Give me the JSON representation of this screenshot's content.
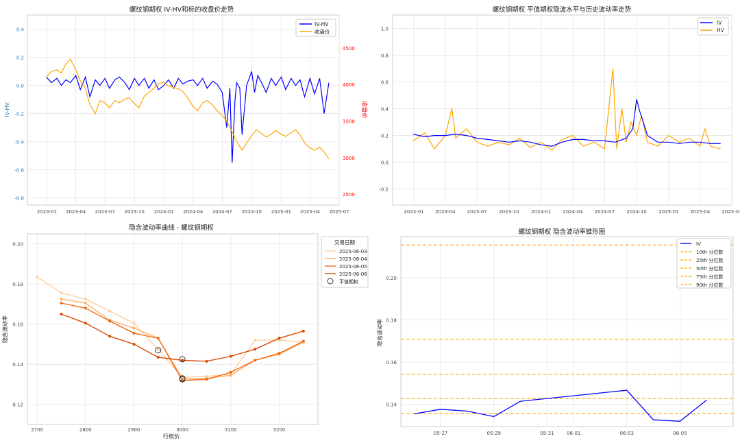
{
  "charts": {
    "tl": {
      "title": "螺纹钢期权 IV-HV和标的收盘价走势",
      "ylabel": "IV-HV",
      "y2label": "收盘价",
      "legend": [
        "IV-HV",
        "收盘价"
      ],
      "xticks": [
        "2023-01",
        "2023-04",
        "2023-07",
        "2023-10",
        "2024-01",
        "2024-04",
        "2024-07",
        "2024-10",
        "2025-01",
        "2025-04",
        "2025-07"
      ],
      "yticks": [
        "0.4",
        "0.2",
        "0.0",
        "-0.2",
        "-0.4",
        "-0.6",
        "-0.8"
      ],
      "y2ticks": [
        "4500",
        "4000",
        "3500",
        "3000",
        "2500"
      ]
    },
    "tr": {
      "title": "螺纹钢期权 平值期权隐波水平与历史波动率走势",
      "legend": [
        "IV",
        "HV"
      ],
      "xticks": [
        "2023-01",
        "2023-04",
        "2023-07",
        "2023-10",
        "2024-01",
        "2024-04",
        "2024-07",
        "2024-10",
        "2025-01",
        "2025-04",
        "2025-07"
      ],
      "yticks": [
        "1.0",
        "0.8",
        "0.6",
        "0.4",
        "0.2",
        "0.0",
        "-0.2"
      ]
    },
    "bl": {
      "title": "隐含波动率曲线 - 螺纹钢期权",
      "xlabel": "行权价",
      "ylabel": "隐含波动率",
      "legend_title": "交易日期",
      "legend": [
        "2025-06-03",
        "2025-06-04",
        "2025-06-05",
        "2025-06-06",
        "平值期权"
      ],
      "xticks": [
        "2700",
        "2800",
        "2900",
        "3000",
        "3100",
        "3200"
      ],
      "yticks": [
        "0.20",
        "0.18",
        "0.16",
        "0.14",
        "0.12"
      ]
    },
    "br": {
      "title": "螺纹钢期权 隐含波动率锥形图",
      "ylabel": "隐含波动率",
      "legend": [
        "IV",
        "10th 分位数",
        "25th 分位数",
        "50th 分位数",
        "75th 分位数",
        "90th 分位数"
      ],
      "xticks": [
        "05-27",
        "05-29",
        "05-31",
        "06-01",
        "06-03",
        "06-05"
      ],
      "yticks": [
        "0.20",
        "0.18",
        "0.16",
        "0.14"
      ]
    }
  },
  "chart_data": [
    {
      "type": "line",
      "title": "螺纹钢期权 IV-HV和标的收盘价走势",
      "ylabel": "IV-HV",
      "y2label": "收盘价",
      "ylim": [
        -0.85,
        0.5
      ],
      "y2lim": [
        2350,
        4950
      ],
      "xlim": [
        "2022-11",
        "2025-07"
      ],
      "series": [
        {
          "name": "IV-HV",
          "color": "#0000ff",
          "axis": "left",
          "x": [
            "2022-12-30",
            "2023-01-15",
            "2023-02-01",
            "2023-02-15",
            "2023-03-01",
            "2023-03-15",
            "2023-04-01",
            "2023-04-15",
            "2023-05-01",
            "2023-05-15",
            "2023-06-01",
            "2023-06-15",
            "2023-07-01",
            "2023-07-15",
            "2023-08-01",
            "2023-08-15",
            "2023-09-01",
            "2023-09-15",
            "2023-10-01",
            "2023-10-15",
            "2023-11-01",
            "2023-11-15",
            "2023-12-01",
            "2023-12-15",
            "2024-01-01",
            "2024-01-15",
            "2024-02-01",
            "2024-02-15",
            "2024-03-01",
            "2024-03-15",
            "2024-04-01",
            "2024-04-15",
            "2024-05-01",
            "2024-05-15",
            "2024-06-01",
            "2024-06-15",
            "2024-07-01",
            "2024-07-15",
            "2024-07-25",
            "2024-08-01",
            "2024-08-10",
            "2024-08-15",
            "2024-08-25",
            "2024-09-01",
            "2024-09-15",
            "2024-10-01",
            "2024-10-10",
            "2024-10-20",
            "2024-11-01",
            "2024-11-15",
            "2024-12-01",
            "2024-12-15",
            "2025-01-01",
            "2025-01-15",
            "2025-02-01",
            "2025-02-15",
            "2025-03-01",
            "2025-03-15",
            "2025-04-01",
            "2025-04-15",
            "2025-05-01",
            "2025-05-15",
            "2025-05-30"
          ],
          "values": [
            0.06,
            0.02,
            0.05,
            0.0,
            0.04,
            0.02,
            0.07,
            -0.03,
            0.06,
            -0.08,
            0.04,
            0.0,
            0.05,
            -0.02,
            0.04,
            0.06,
            0.02,
            -0.03,
            0.05,
            0.0,
            0.05,
            -0.02,
            0.04,
            -0.03,
            0.0,
            0.04,
            -0.02,
            0.05,
            0.01,
            0.03,
            0.04,
            0.0,
            0.05,
            -0.02,
            0.03,
            0.01,
            -0.05,
            -0.3,
            -0.02,
            -0.55,
            -0.1,
            0.02,
            -0.02,
            -0.35,
            0.0,
            0.1,
            -0.05,
            0.07,
            0.02,
            -0.05,
            0.05,
            0.0,
            0.06,
            -0.03,
            0.05,
            0.0,
            0.04,
            -0.08,
            0.05,
            -0.06,
            0.05,
            -0.2,
            0.02
          ]
        },
        {
          "name": "收盘价",
          "color": "#ffa500",
          "axis": "right",
          "x": [
            "2022-12-30",
            "2023-01-15",
            "2023-02-01",
            "2023-02-15",
            "2023-03-01",
            "2023-03-15",
            "2023-04-01",
            "2023-04-15",
            "2023-05-01",
            "2023-05-15",
            "2023-06-01",
            "2023-06-15",
            "2023-07-01",
            "2023-07-15",
            "2023-08-01",
            "2023-08-15",
            "2023-09-01",
            "2023-09-15",
            "2023-10-01",
            "2023-10-15",
            "2023-11-01",
            "2023-11-15",
            "2023-12-01",
            "2023-12-15",
            "2024-01-01",
            "2024-01-15",
            "2024-02-01",
            "2024-02-15",
            "2024-03-01",
            "2024-03-15",
            "2024-04-01",
            "2024-04-15",
            "2024-05-01",
            "2024-05-15",
            "2024-06-01",
            "2024-06-15",
            "2024-07-01",
            "2024-07-15",
            "2024-08-01",
            "2024-08-15",
            "2024-09-01",
            "2024-09-15",
            "2024-10-01",
            "2024-10-15",
            "2024-11-01",
            "2024-11-15",
            "2024-12-01",
            "2024-12-15",
            "2025-01-01",
            "2025-01-15",
            "2025-02-01",
            "2025-02-15",
            "2025-03-01",
            "2025-03-15",
            "2025-04-01",
            "2025-04-15",
            "2025-05-01",
            "2025-05-15",
            "2025-05-30"
          ],
          "values": [
            4100,
            4180,
            4200,
            4160,
            4280,
            4350,
            4200,
            4050,
            3950,
            3720,
            3600,
            3780,
            3750,
            3680,
            3780,
            3750,
            3800,
            3820,
            3740,
            3680,
            3840,
            3890,
            3950,
            4010,
            4030,
            3980,
            3960,
            3940,
            3900,
            3820,
            3700,
            3640,
            3750,
            3780,
            3720,
            3640,
            3580,
            3500,
            3350,
            3220,
            3100,
            3200,
            3300,
            3380,
            3330,
            3280,
            3320,
            3370,
            3320,
            3290,
            3340,
            3380,
            3310,
            3200,
            3130,
            3100,
            3140,
            3080,
            2980
          ]
        }
      ]
    },
    {
      "type": "line",
      "title": "螺纹钢期权 平值期权隐波水平与历史波动率走势",
      "ylim": [
        -0.32,
        1.1
      ],
      "xlim": [
        "2022-11",
        "2025-07"
      ],
      "series": [
        {
          "name": "IV",
          "color": "#0000ff",
          "x": [
            "2022-12-30",
            "2023-02-01",
            "2023-03-01",
            "2023-04-01",
            "2023-05-01",
            "2023-06-01",
            "2023-07-01",
            "2023-08-01",
            "2023-09-01",
            "2023-10-01",
            "2023-11-01",
            "2023-12-01",
            "2024-01-01",
            "2024-02-01",
            "2024-03-01",
            "2024-04-01",
            "2024-05-01",
            "2024-06-01",
            "2024-07-01",
            "2024-08-01",
            "2024-09-01",
            "2024-09-20",
            "2024-10-01",
            "2024-10-10",
            "2024-10-20",
            "2024-11-01",
            "2024-12-01",
            "2025-01-01",
            "2025-02-01",
            "2025-03-01",
            "2025-04-01",
            "2025-05-01",
            "2025-05-30"
          ],
          "values": [
            0.21,
            0.19,
            0.2,
            0.2,
            0.21,
            0.2,
            0.18,
            0.17,
            0.16,
            0.15,
            0.16,
            0.15,
            0.13,
            0.12,
            0.15,
            0.17,
            0.17,
            0.16,
            0.16,
            0.15,
            0.18,
            0.25,
            0.47,
            0.38,
            0.3,
            0.2,
            0.15,
            0.15,
            0.14,
            0.15,
            0.15,
            0.14,
            0.14
          ]
        },
        {
          "name": "HV",
          "color": "#ffa500",
          "x": [
            "2022-12-30",
            "2023-02-01",
            "2023-03-01",
            "2023-04-01",
            "2023-04-20",
            "2023-05-01",
            "2023-06-01",
            "2023-07-01",
            "2023-08-01",
            "2023-09-01",
            "2023-10-01",
            "2023-11-01",
            "2023-12-01",
            "2024-01-01",
            "2024-02-01",
            "2024-03-01",
            "2024-04-01",
            "2024-05-01",
            "2024-06-01",
            "2024-07-01",
            "2024-07-15",
            "2024-07-25",
            "2024-08-05",
            "2024-08-20",
            "2024-09-01",
            "2024-09-15",
            "2024-10-01",
            "2024-10-15",
            "2024-11-01",
            "2024-12-01",
            "2025-01-01",
            "2025-02-01",
            "2025-03-01",
            "2025-04-01",
            "2025-04-15",
            "2025-05-01",
            "2025-05-30"
          ],
          "values": [
            0.16,
            0.22,
            0.1,
            0.2,
            0.4,
            0.18,
            0.25,
            0.15,
            0.12,
            0.15,
            0.13,
            0.18,
            0.11,
            0.15,
            0.09,
            0.17,
            0.2,
            0.12,
            0.15,
            0.1,
            0.45,
            0.7,
            0.1,
            0.4,
            0.15,
            0.3,
            0.2,
            0.35,
            0.15,
            0.12,
            0.2,
            0.15,
            0.18,
            0.12,
            0.25,
            0.12,
            0.1
          ]
        }
      ]
    },
    {
      "type": "line",
      "title": "隐含波动率曲线 - 螺纹钢期权",
      "xlabel": "行权价",
      "ylabel": "隐含波动率",
      "xlim": [
        2680,
        3280
      ],
      "ylim": [
        0.11,
        0.205
      ],
      "series": [
        {
          "name": "2025-06-03",
          "color": "#fdd0a2",
          "x": [
            2700,
            2750,
            2800,
            2850,
            2900,
            2950,
            3000,
            3050,
            3100,
            3150,
            3200,
            3250
          ],
          "values": [
            0.1835,
            0.1755,
            0.1725,
            0.1665,
            0.1605,
            0.1475,
            0.1335,
            0.134,
            0.135,
            0.152,
            0.152,
            0.151
          ]
        },
        {
          "name": "2025-06-04",
          "color": "#fdae6b",
          "x": [
            2750,
            2800,
            2850,
            2900,
            2950,
            3000,
            3050,
            3100,
            3150,
            3200,
            3250
          ],
          "values": [
            0.1725,
            0.1705,
            0.162,
            0.158,
            0.153,
            0.133,
            0.133,
            0.1345,
            0.142,
            0.145,
            0.151
          ]
        },
        {
          "name": "2025-06-05",
          "color": "#f16913",
          "x": [
            2750,
            2800,
            2850,
            2900,
            2950,
            3000,
            3050,
            3100,
            3150,
            3200,
            3250
          ],
          "values": [
            0.1705,
            0.168,
            0.1615,
            0.1555,
            0.153,
            0.132,
            0.1325,
            0.136,
            0.142,
            0.1455,
            0.1515
          ]
        },
        {
          "name": "2025-06-06",
          "color": "#d94801",
          "x": [
            2750,
            2800,
            2850,
            2900,
            2950,
            3000,
            3050,
            3100,
            3150,
            3200,
            3250
          ],
          "values": [
            0.165,
            0.1605,
            0.154,
            0.15,
            0.1435,
            0.142,
            0.1415,
            0.144,
            0.1475,
            0.153,
            0.1565
          ]
        }
      ],
      "atm_points": [
        {
          "x": 2950,
          "y": 0.147
        },
        {
          "x": 3000,
          "y": 0.1425
        },
        {
          "x": 3000,
          "y": 0.133
        },
        {
          "x": 3000,
          "y": 0.1325
        }
      ]
    },
    {
      "type": "line",
      "title": "螺纹钢期权 隐含波动率锥形图",
      "ylabel": "隐含波动率",
      "xlim": [
        "2025-05-25 12:00",
        "2025-06-07"
      ],
      "ylim": [
        0.1295,
        0.2195
      ],
      "series": [
        {
          "name": "IV",
          "color": "#0000ff",
          "x": [
            "2025-05-26",
            "2025-05-27",
            "2025-05-28",
            "2025-05-29",
            "2025-05-30",
            "2025-06-03",
            "2025-06-04",
            "2025-06-05",
            "2025-06-06"
          ],
          "values": [
            0.1355,
            0.1377,
            0.1368,
            0.1342,
            0.1415,
            0.1467,
            0.1327,
            0.132,
            0.142
          ]
        }
      ],
      "percentiles": [
        {
          "name": "10th 分位数",
          "value": 0.1357
        },
        {
          "name": "25th 分位数",
          "value": 0.1428
        },
        {
          "name": "50th 分位数",
          "value": 0.1543
        },
        {
          "name": "75th 分位数",
          "value": 0.1709
        },
        {
          "name": "90th 分位数",
          "value": 0.2155
        }
      ]
    }
  ]
}
